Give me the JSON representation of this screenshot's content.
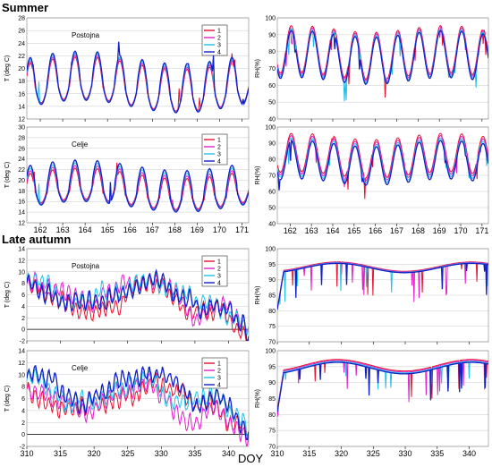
{
  "sections": [
    "Summer",
    "Late autumn"
  ],
  "xlabel": "DOY",
  "colors": {
    "1": "#e8102e",
    "2": "#e020c8",
    "3": "#20c0e8",
    "4": "#1020c8"
  },
  "series_names": [
    "1",
    "2",
    "3",
    "4"
  ],
  "chart_data": [
    {
      "type": "line",
      "section": "Summer",
      "site": "Postojna",
      "ylabel": "T (deg C)",
      "ylim": [
        12,
        28
      ],
      "yticks": [
        "12",
        "14",
        "16",
        "18",
        "20",
        "22",
        "24",
        "26",
        "28"
      ],
      "xlim": [
        161.4,
        171.3
      ],
      "xticks": [
        "162",
        "163",
        "164",
        "165",
        "166",
        "167",
        "168",
        "169",
        "170",
        "171"
      ],
      "show_xticks": false,
      "model": {
        "kind": "T_summer",
        "base": 16.5,
        "amp": 4.0,
        "seed": 1,
        "spread": 0.6
      }
    },
    {
      "type": "line",
      "section": "Summer",
      "site": "",
      "ylabel": "RH(%)",
      "ylim": [
        40,
        100
      ],
      "yticks": [
        "40",
        "50",
        "60",
        "70",
        "80",
        "90",
        "100"
      ],
      "xlim": [
        161.4,
        171.3
      ],
      "xticks": [
        "162",
        "163",
        "164",
        "165",
        "166",
        "167",
        "168",
        "169",
        "170",
        "171"
      ],
      "show_xticks": false,
      "model": {
        "kind": "RH_summer",
        "base": 78,
        "amp": 14,
        "seed": 2,
        "spread": 2.0
      }
    },
    {
      "type": "line",
      "section": "Summer",
      "site": "Celje",
      "ylabel": "T (deg C)",
      "ylim": [
        12,
        30
      ],
      "yticks": [
        "12",
        "14",
        "16",
        "18",
        "20",
        "22",
        "24",
        "26",
        "28",
        "30"
      ],
      "xlim": [
        161.4,
        171.3
      ],
      "xticks": [
        "162",
        "163",
        "164",
        "165",
        "166",
        "167",
        "168",
        "169",
        "170",
        "171"
      ],
      "show_xticks": true,
      "model": {
        "kind": "T_summer",
        "base": 17.5,
        "amp": 3.8,
        "seed": 3,
        "spread": 1.0
      }
    },
    {
      "type": "line",
      "section": "Summer",
      "site": "",
      "ylabel": "RH(%)",
      "ylim": [
        40,
        100
      ],
      "yticks": [
        "40",
        "50",
        "60",
        "70",
        "80",
        "90",
        "100"
      ],
      "xlim": [
        161.4,
        171.3
      ],
      "xticks": [
        "162",
        "163",
        "164",
        "165",
        "166",
        "167",
        "168",
        "169",
        "170",
        "171"
      ],
      "show_xticks": true,
      "model": {
        "kind": "RH_summer",
        "base": 80,
        "amp": 12,
        "seed": 4,
        "spread": 3.0
      }
    },
    {
      "type": "line",
      "section": "Late autumn",
      "site": "Postojna",
      "ylabel": "T (deg C)",
      "ylim": [
        -2,
        14
      ],
      "yticks": [
        "-2",
        "0",
        "2",
        "4",
        "6",
        "8",
        "10",
        "12",
        "14"
      ],
      "xlim": [
        310,
        343
      ],
      "xticks": [
        "310",
        "315",
        "320",
        "325",
        "330",
        "335",
        "340"
      ],
      "show_xticks": false,
      "model": {
        "kind": "T_autumn",
        "base": 6,
        "amp": 2.2,
        "seed": 5,
        "spread": 0.4
      }
    },
    {
      "type": "line",
      "section": "Late autumn",
      "site": "",
      "ylabel": "RH(%)",
      "ylim": [
        70,
        100
      ],
      "yticks": [
        "70",
        "75",
        "80",
        "85",
        "90",
        "95",
        "100"
      ],
      "xlim": [
        310,
        343
      ],
      "xticks": [
        "310",
        "315",
        "320",
        "325",
        "330",
        "335",
        "340"
      ],
      "show_xticks": false,
      "model": {
        "kind": "RH_autumn",
        "base": 94,
        "amp": 1.5,
        "seed": 6,
        "spread": 0.6
      }
    },
    {
      "type": "line",
      "section": "Late autumn",
      "site": "Celje",
      "ylabel": "T (deg C)",
      "ylim": [
        -2,
        14
      ],
      "yticks": [
        "-2",
        "0",
        "2",
        "4",
        "6",
        "8",
        "10",
        "12",
        "14"
      ],
      "xlim": [
        310,
        343
      ],
      "xticks": [
        "310",
        "315",
        "320",
        "325",
        "330",
        "335",
        "340"
      ],
      "show_xticks": true,
      "model": {
        "kind": "T_autumn",
        "base": 6.5,
        "amp": 2.0,
        "seed": 7,
        "spread": 0.9
      }
    },
    {
      "type": "line",
      "section": "Late autumn",
      "site": "",
      "ylabel": "RH(%)",
      "ylim": [
        70,
        100
      ],
      "yticks": [
        "70",
        "75",
        "80",
        "85",
        "90",
        "95",
        "100"
      ],
      "xlim": [
        310,
        343
      ],
      "xticks": [
        "310",
        "315",
        "320",
        "325",
        "330",
        "335",
        "340"
      ],
      "show_xticks": true,
      "model": {
        "kind": "RH_autumn",
        "base": 95,
        "amp": 1.8,
        "seed": 8,
        "spread": 1.2
      }
    }
  ]
}
